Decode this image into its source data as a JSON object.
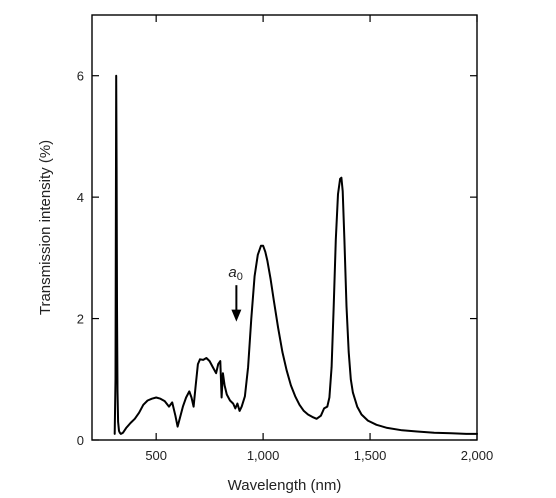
{
  "chart_data": {
    "type": "line",
    "title": "",
    "xlabel": "Wavelength (nm)",
    "ylabel": "Transmission intensity (%)",
    "xlim": [
      200,
      2000
    ],
    "ylim": [
      0,
      7
    ],
    "xticks": [
      500,
      1000,
      1500,
      2000
    ],
    "xtick_labels": [
      "500",
      "1,000",
      "1,500",
      "2,000"
    ],
    "yticks": [
      0,
      2,
      4,
      6
    ],
    "ytick_labels": [
      "0",
      "2",
      "4",
      "6"
    ],
    "grid": false,
    "legend": "none",
    "line_color": "#000000",
    "annotation": {
      "text": "a",
      "subscript": "0",
      "x": 875,
      "arrow_from_y": 2.55,
      "arrow_to_y": 1.95
    },
    "series": [
      {
        "x": [
          306,
          310,
          313,
          315,
          317,
          319,
          322,
          326,
          330,
          335,
          345,
          360,
          380,
          400,
          420,
          440,
          460,
          480,
          500,
          520,
          540,
          560,
          575,
          590,
          600,
          610,
          625,
          640,
          655,
          665,
          675,
          685,
          695,
          705,
          720,
          735,
          750,
          765,
          780,
          790,
          800,
          806,
          812,
          820,
          830,
          845,
          860,
          870,
          880,
          890,
          900,
          915,
          930,
          945,
          960,
          975,
          990,
          1000,
          1010,
          1020,
          1035,
          1050,
          1070,
          1090,
          1110,
          1130,
          1150,
          1170,
          1190,
          1210,
          1230,
          1250,
          1270,
          1285,
          1300,
          1310,
          1320,
          1330,
          1340,
          1350,
          1360,
          1366,
          1372,
          1380,
          1390,
          1400,
          1410,
          1420,
          1440,
          1460,
          1490,
          1530,
          1580,
          1650,
          1720,
          1800,
          1880,
          1950,
          2000
        ],
        "y": [
          0.1,
          1.0,
          6.0,
          4.5,
          2.2,
          0.8,
          0.3,
          0.15,
          0.12,
          0.1,
          0.12,
          0.2,
          0.28,
          0.35,
          0.45,
          0.58,
          0.65,
          0.68,
          0.7,
          0.68,
          0.64,
          0.55,
          0.62,
          0.4,
          0.22,
          0.35,
          0.55,
          0.7,
          0.8,
          0.7,
          0.55,
          0.9,
          1.25,
          1.33,
          1.32,
          1.35,
          1.3,
          1.2,
          1.1,
          1.25,
          1.3,
          0.7,
          1.1,
          0.9,
          0.75,
          0.65,
          0.6,
          0.52,
          0.6,
          0.48,
          0.55,
          0.72,
          1.2,
          2.0,
          2.7,
          3.05,
          3.2,
          3.2,
          3.1,
          2.95,
          2.65,
          2.3,
          1.85,
          1.45,
          1.15,
          0.9,
          0.72,
          0.58,
          0.48,
          0.42,
          0.38,
          0.35,
          0.4,
          0.52,
          0.55,
          0.7,
          1.2,
          2.2,
          3.3,
          4.05,
          4.3,
          4.32,
          4.1,
          3.3,
          2.2,
          1.45,
          1.0,
          0.78,
          0.55,
          0.42,
          0.32,
          0.25,
          0.2,
          0.16,
          0.14,
          0.12,
          0.11,
          0.1,
          0.1
        ]
      }
    ]
  }
}
